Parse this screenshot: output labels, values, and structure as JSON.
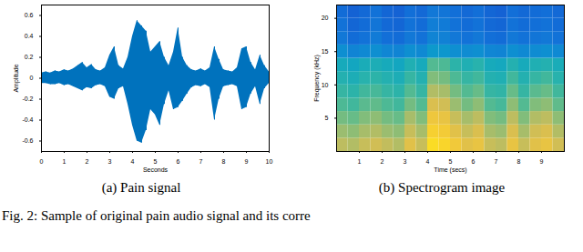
{
  "caption": "Fig. 2: Sample of original pain audio signal and its corre",
  "chart_data": [
    {
      "type": "area",
      "caption": "(a) Pain signal",
      "xlabel": "Seconds",
      "ylabel": "Amplitude",
      "color": "#0072bd",
      "xlim": [
        0,
        10
      ],
      "xticks": [
        0,
        1,
        2,
        3,
        4,
        5,
        6,
        7,
        8,
        9,
        10
      ],
      "ylim": [
        -0.7,
        0.7
      ],
      "yticks": [
        -0.6,
        -0.4,
        -0.2,
        0,
        0.2,
        0.4,
        0.6
      ],
      "x": [
        0,
        0.2,
        0.4,
        0.6,
        0.8,
        1.0,
        1.2,
        1.4,
        1.6,
        1.8,
        2.0,
        2.2,
        2.4,
        2.6,
        2.8,
        3.0,
        3.2,
        3.4,
        3.6,
        3.8,
        4.0,
        4.2,
        4.4,
        4.6,
        4.8,
        5.0,
        5.2,
        5.4,
        5.6,
        5.8,
        6.0,
        6.2,
        6.4,
        6.6,
        6.8,
        7.0,
        7.2,
        7.4,
        7.6,
        7.8,
        8.0,
        8.2,
        8.4,
        8.6,
        8.8,
        9.0,
        9.2,
        9.4,
        9.6,
        9.8,
        10.0
      ],
      "upper": [
        0.05,
        0.06,
        0.05,
        0.07,
        0.06,
        0.08,
        0.07,
        0.09,
        0.12,
        0.15,
        0.1,
        0.13,
        0.08,
        0.07,
        0.1,
        0.22,
        0.3,
        0.12,
        0.09,
        0.2,
        0.4,
        0.55,
        0.5,
        0.45,
        0.25,
        0.3,
        0.35,
        0.2,
        0.12,
        0.25,
        0.48,
        0.2,
        0.12,
        0.08,
        0.07,
        0.09,
        0.07,
        0.1,
        0.3,
        0.18,
        0.08,
        0.07,
        0.06,
        0.1,
        0.28,
        0.3,
        0.15,
        0.08,
        0.22,
        0.12,
        0.06
      ],
      "lower": [
        -0.05,
        -0.05,
        -0.06,
        -0.06,
        -0.05,
        -0.07,
        -0.06,
        -0.08,
        -0.1,
        -0.12,
        -0.09,
        -0.1,
        -0.07,
        -0.06,
        -0.08,
        -0.18,
        -0.2,
        -0.1,
        -0.08,
        -0.25,
        -0.45,
        -0.6,
        -0.62,
        -0.5,
        -0.3,
        -0.35,
        -0.45,
        -0.25,
        -0.12,
        -0.3,
        -0.28,
        -0.22,
        -0.15,
        -0.09,
        -0.07,
        -0.08,
        -0.06,
        -0.09,
        -0.4,
        -0.2,
        -0.08,
        -0.07,
        -0.06,
        -0.08,
        -0.3,
        -0.28,
        -0.15,
        -0.08,
        -0.25,
        -0.1,
        -0.05
      ]
    },
    {
      "type": "heatmap",
      "caption": "(b) Spectrogram image",
      "xlabel": "Time (secs)",
      "ylabel": "Frequency (kHz)",
      "xlim": [
        0,
        10
      ],
      "xticks": [
        1,
        2,
        3,
        4,
        5,
        6,
        7,
        8,
        9
      ],
      "ylim": [
        0,
        22
      ],
      "yticks": [
        5,
        10,
        15,
        20
      ],
      "clim": [
        0,
        1
      ],
      "x_bins": [
        0,
        0.5,
        1,
        1.5,
        2,
        2.5,
        3,
        3.5,
        4,
        4.5,
        5,
        5.5,
        6,
        6.5,
        7,
        7.5,
        8,
        8.5,
        9,
        9.5,
        10
      ],
      "y_bins": [
        0,
        2,
        4,
        6,
        8,
        10,
        12,
        14,
        16,
        18,
        20,
        22
      ],
      "cells": [
        [
          0.72,
          0.7,
          0.74,
          0.76,
          0.73,
          0.7,
          0.8,
          0.74,
          0.92,
          0.9,
          0.85,
          0.8,
          0.82,
          0.74,
          0.72,
          0.82,
          0.74,
          0.8,
          0.82,
          0.76
        ],
        [
          0.66,
          0.64,
          0.68,
          0.7,
          0.66,
          0.64,
          0.74,
          0.68,
          0.88,
          0.86,
          0.8,
          0.74,
          0.78,
          0.68,
          0.66,
          0.78,
          0.68,
          0.76,
          0.78,
          0.7
        ],
        [
          0.6,
          0.58,
          0.62,
          0.64,
          0.6,
          0.58,
          0.68,
          0.62,
          0.84,
          0.82,
          0.74,
          0.68,
          0.72,
          0.62,
          0.6,
          0.72,
          0.62,
          0.7,
          0.72,
          0.64
        ],
        [
          0.54,
          0.52,
          0.56,
          0.57,
          0.54,
          0.52,
          0.6,
          0.55,
          0.78,
          0.76,
          0.66,
          0.6,
          0.64,
          0.55,
          0.53,
          0.64,
          0.55,
          0.62,
          0.64,
          0.57
        ],
        [
          0.5,
          0.48,
          0.52,
          0.53,
          0.5,
          0.48,
          0.55,
          0.5,
          0.7,
          0.68,
          0.6,
          0.55,
          0.58,
          0.5,
          0.49,
          0.58,
          0.5,
          0.56,
          0.58,
          0.52
        ],
        [
          0.46,
          0.44,
          0.47,
          0.48,
          0.46,
          0.44,
          0.5,
          0.46,
          0.62,
          0.6,
          0.54,
          0.5,
          0.52,
          0.46,
          0.45,
          0.52,
          0.46,
          0.5,
          0.52,
          0.47
        ],
        [
          0.42,
          0.4,
          0.43,
          0.44,
          0.42,
          0.4,
          0.45,
          0.42,
          0.55,
          0.54,
          0.48,
          0.45,
          0.47,
          0.42,
          0.41,
          0.46,
          0.42,
          0.45,
          0.46,
          0.43
        ],
        [
          0.3,
          0.26,
          0.28,
          0.3,
          0.27,
          0.26,
          0.3,
          0.28,
          0.34,
          0.33,
          0.3,
          0.29,
          0.3,
          0.27,
          0.26,
          0.3,
          0.28,
          0.29,
          0.3,
          0.28
        ],
        [
          0.22,
          0.18,
          0.2,
          0.23,
          0.19,
          0.18,
          0.22,
          0.2,
          0.26,
          0.25,
          0.22,
          0.2,
          0.22,
          0.19,
          0.18,
          0.22,
          0.2,
          0.21,
          0.22,
          0.2
        ],
        [
          0.2,
          0.16,
          0.18,
          0.21,
          0.17,
          0.16,
          0.2,
          0.18,
          0.24,
          0.23,
          0.2,
          0.18,
          0.2,
          0.17,
          0.16,
          0.2,
          0.18,
          0.19,
          0.2,
          0.18
        ],
        [
          0.18,
          0.15,
          0.17,
          0.2,
          0.16,
          0.15,
          0.19,
          0.17,
          0.22,
          0.21,
          0.19,
          0.17,
          0.19,
          0.16,
          0.15,
          0.19,
          0.17,
          0.18,
          0.19,
          0.17
        ]
      ]
    }
  ]
}
